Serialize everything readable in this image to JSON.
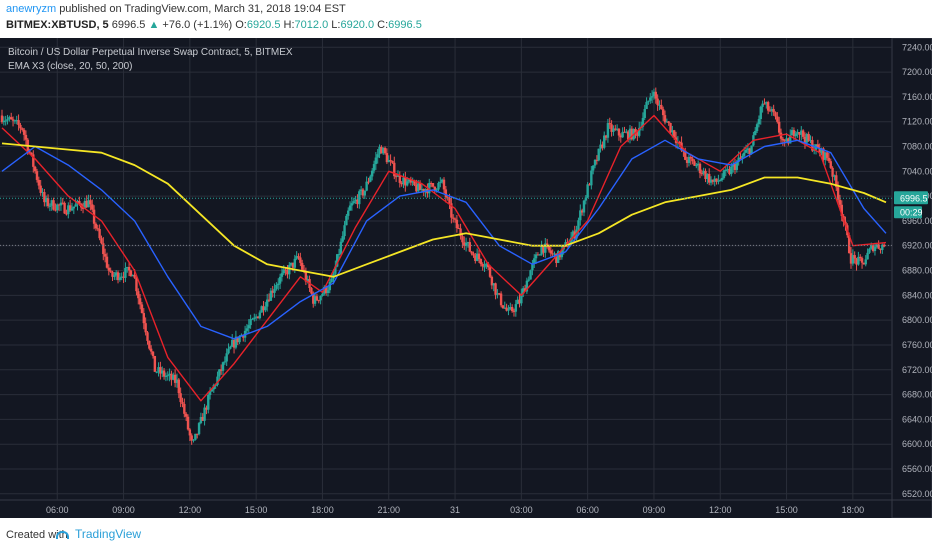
{
  "header": {
    "username": "anewryzm",
    "published_text": "published on TradingView.com, March 31, 2018 19:04 EST",
    "symbol": "BITMEX:XBTUSD, 5",
    "last": "6996.5",
    "arrow": "▲",
    "change": "+76.0 (+1.1%)",
    "o_label": "O:",
    "o_value": "6920.5",
    "h_label": "H:",
    "h_value": "7012.0",
    "l_label": "L:",
    "l_value": "6920.0",
    "c_label": "C:",
    "c_value": "6996.5"
  },
  "legend": {
    "title": "Bitcoin / US Dollar Perpetual Inverse Swap Contract, 5, BITMEX",
    "indicator": "EMA X3 (close, 20, 50, 200)"
  },
  "footer": {
    "created_with": "Created with",
    "brand": "TradingView",
    "brand_icon": "tradingview-logo-icon"
  },
  "colors": {
    "background": "#131722",
    "grid": "#2a2e39",
    "up": "#26a69a",
    "down": "#ef5350",
    "ema20": "#e8222a",
    "ema50": "#2962ff",
    "ema200": "#f5e625",
    "axis_text": "#b2b5be",
    "price_tag": "#26a69a"
  },
  "chart_data": {
    "type": "candlestick",
    "title": "Bitcoin / US Dollar Perpetual Inverse Swap Contract, 5, BITMEX",
    "x_ticks": [
      "06:00",
      "09:00",
      "12:00",
      "15:00",
      "18:00",
      "21:00",
      "31",
      "03:00",
      "06:00",
      "09:00",
      "12:00",
      "15:00",
      "18:00"
    ],
    "y_ticks": [
      7240,
      7200,
      7160,
      7120,
      7080,
      7040,
      7000,
      6960,
      6920,
      6880,
      6840,
      6800,
      6760,
      6720,
      6680,
      6640,
      6600,
      6560,
      6520
    ],
    "ylim": [
      6510,
      7255
    ],
    "x_range_hours": [
      3.5,
      43.5
    ],
    "last_price": "6996.5",
    "countdown": "00:29",
    "reference_price": 6920.5,
    "price_path": [
      [
        3.5,
        7130
      ],
      [
        4.5,
        7110
      ],
      [
        5.5,
        6990
      ],
      [
        6.5,
        6980
      ],
      [
        7.5,
        6990
      ],
      [
        8.5,
        6870
      ],
      [
        9.5,
        6880
      ],
      [
        10.5,
        6720
      ],
      [
        11.5,
        6700
      ],
      [
        12.2,
        6595
      ],
      [
        13.0,
        6680
      ],
      [
        14.0,
        6760
      ],
      [
        15.0,
        6800
      ],
      [
        16.0,
        6860
      ],
      [
        17.0,
        6900
      ],
      [
        17.7,
        6830
      ],
      [
        18.5,
        6860
      ],
      [
        19.3,
        6980
      ],
      [
        20.0,
        7010
      ],
      [
        20.7,
        7080
      ],
      [
        21.5,
        7030
      ],
      [
        22.5,
        7010
      ],
      [
        23.5,
        7020
      ],
      [
        24.0,
        6960
      ],
      [
        24.8,
        6910
      ],
      [
        25.5,
        6890
      ],
      [
        26.0,
        6840
      ],
      [
        26.5,
        6810
      ],
      [
        27.0,
        6830
      ],
      [
        27.5,
        6880
      ],
      [
        28.0,
        6920
      ],
      [
        28.7,
        6900
      ],
      [
        29.5,
        6940
      ],
      [
        30.3,
        7040
      ],
      [
        31.0,
        7110
      ],
      [
        31.5,
        7100
      ],
      [
        32.3,
        7100
      ],
      [
        33.0,
        7170
      ],
      [
        33.5,
        7130
      ],
      [
        34.0,
        7100
      ],
      [
        34.5,
        7060
      ],
      [
        35.0,
        7050
      ],
      [
        35.8,
        7020
      ],
      [
        36.5,
        7040
      ],
      [
        37.5,
        7080
      ],
      [
        38.0,
        7150
      ],
      [
        38.5,
        7130
      ],
      [
        39.0,
        7080
      ],
      [
        39.5,
        7110
      ],
      [
        40.3,
        7080
      ],
      [
        41.0,
        7060
      ],
      [
        41.5,
        6990
      ],
      [
        42.0,
        6900
      ],
      [
        42.5,
        6890
      ],
      [
        43.0,
        6920
      ],
      [
        43.5,
        6920
      ]
    ],
    "series": [
      {
        "name": "EMA 20",
        "color": "#e8222a",
        "values": [
          [
            3.5,
            7110
          ],
          [
            5.0,
            7060
          ],
          [
            6.5,
            7000
          ],
          [
            8.0,
            6960
          ],
          [
            9.5,
            6880
          ],
          [
            11.0,
            6740
          ],
          [
            12.5,
            6670
          ],
          [
            14.0,
            6730
          ],
          [
            15.5,
            6800
          ],
          [
            17.0,
            6870
          ],
          [
            18.0,
            6845
          ],
          [
            19.5,
            6950
          ],
          [
            21.0,
            7040
          ],
          [
            22.5,
            7020
          ],
          [
            24.0,
            6980
          ],
          [
            25.5,
            6890
          ],
          [
            27.0,
            6840
          ],
          [
            28.5,
            6900
          ],
          [
            30.0,
            6960
          ],
          [
            31.5,
            7080
          ],
          [
            33.0,
            7130
          ],
          [
            34.5,
            7070
          ],
          [
            36.0,
            7040
          ],
          [
            37.5,
            7090
          ],
          [
            39.0,
            7100
          ],
          [
            40.5,
            7070
          ],
          [
            42.0,
            6920
          ],
          [
            43.5,
            6925
          ]
        ]
      },
      {
        "name": "EMA 50",
        "color": "#2962ff",
        "values": [
          [
            3.5,
            7040
          ],
          [
            5.0,
            7080
          ],
          [
            6.5,
            7050
          ],
          [
            8.0,
            7010
          ],
          [
            9.5,
            6960
          ],
          [
            11.0,
            6870
          ],
          [
            12.5,
            6790
          ],
          [
            14.0,
            6770
          ],
          [
            15.5,
            6790
          ],
          [
            17.0,
            6830
          ],
          [
            18.5,
            6860
          ],
          [
            20.0,
            6960
          ],
          [
            21.5,
            7000
          ],
          [
            23.0,
            7010
          ],
          [
            24.5,
            6990
          ],
          [
            26.0,
            6920
          ],
          [
            27.5,
            6890
          ],
          [
            29.0,
            6910
          ],
          [
            30.5,
            6980
          ],
          [
            32.0,
            7060
          ],
          [
            33.5,
            7090
          ],
          [
            35.0,
            7060
          ],
          [
            36.5,
            7050
          ],
          [
            38.0,
            7080
          ],
          [
            39.5,
            7090
          ],
          [
            41.0,
            7070
          ],
          [
            42.5,
            6980
          ],
          [
            43.5,
            6940
          ]
        ]
      },
      {
        "name": "EMA 200",
        "color": "#f5e625",
        "values": [
          [
            3.5,
            7085
          ],
          [
            5.0,
            7080
          ],
          [
            6.5,
            7075
          ],
          [
            8.0,
            7070
          ],
          [
            9.5,
            7050
          ],
          [
            11.0,
            7020
          ],
          [
            12.5,
            6970
          ],
          [
            14.0,
            6920
          ],
          [
            15.5,
            6890
          ],
          [
            17.0,
            6880
          ],
          [
            18.5,
            6870
          ],
          [
            20.0,
            6890
          ],
          [
            21.5,
            6910
          ],
          [
            23.0,
            6930
          ],
          [
            24.5,
            6940
          ],
          [
            26.0,
            6930
          ],
          [
            27.5,
            6920
          ],
          [
            29.0,
            6920
          ],
          [
            30.5,
            6940
          ],
          [
            32.0,
            6970
          ],
          [
            33.5,
            6990
          ],
          [
            35.0,
            7000
          ],
          [
            36.5,
            7010
          ],
          [
            38.0,
            7030
          ],
          [
            39.5,
            7030
          ],
          [
            41.0,
            7020
          ],
          [
            42.5,
            7005
          ],
          [
            43.5,
            6990
          ]
        ]
      }
    ]
  }
}
